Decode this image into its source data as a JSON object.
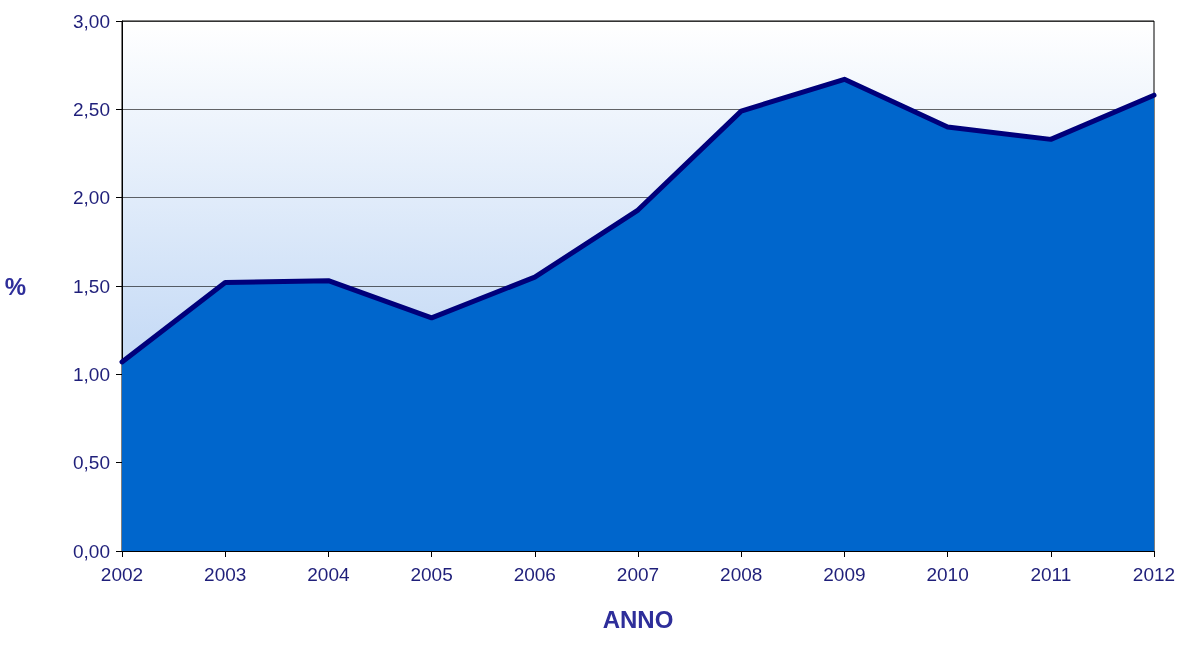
{
  "chart_data": {
    "type": "area",
    "xlabel": "ANNO",
    "ylabel": "%",
    "categories": [
      "2002",
      "2003",
      "2004",
      "2005",
      "2006",
      "2007",
      "2008",
      "2009",
      "2010",
      "2011",
      "2012"
    ],
    "series": [
      {
        "color": "#0066cc",
        "values": [
          1.07,
          1.52,
          1.53,
          1.32,
          1.55,
          1.93,
          2.49,
          2.67,
          2.4,
          2.33,
          2.58
        ]
      }
    ],
    "ylim": [
      0,
      3
    ],
    "yticks": [
      {
        "value": 0,
        "label": "0,00"
      },
      {
        "value": 0.5,
        "label": "0,50"
      },
      {
        "value": 1,
        "label": "1,00"
      },
      {
        "value": 1.5,
        "label": "1,50"
      },
      {
        "value": 2,
        "label": "2,00"
      },
      {
        "value": 2.5,
        "label": "2,50"
      },
      {
        "value": 3,
        "label": "3,00"
      }
    ],
    "grid": "y",
    "marker": "none",
    "line_style": "solid"
  }
}
